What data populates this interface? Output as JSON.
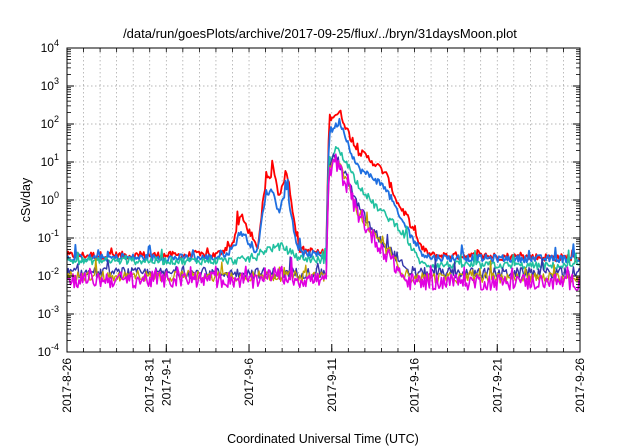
{
  "chart_data": {
    "type": "line",
    "title": "/data/run/goesPlots/archive/2017-09-25/flux/../bryn/31daysMoon.plot",
    "xlabel": "Coordinated Universal Time (UTC)",
    "ylabel": "cSv/day",
    "y_scale": "log",
    "ylim": [
      0.0001,
      10000
    ],
    "y_ticks": [
      {
        "value": 0.0001,
        "base": "10",
        "exp": "-4"
      },
      {
        "value": 0.001,
        "base": "10",
        "exp": "-3"
      },
      {
        "value": 0.01,
        "base": "10",
        "exp": "-2"
      },
      {
        "value": 0.1,
        "base": "10",
        "exp": "-1"
      },
      {
        "value": 1,
        "base": "10",
        "exp": "0"
      },
      {
        "value": 10,
        "base": "10",
        "exp": "1"
      },
      {
        "value": 100,
        "base": "10",
        "exp": "2"
      },
      {
        "value": 1000,
        "base": "10",
        "exp": "3"
      },
      {
        "value": 10000,
        "base": "10",
        "exp": "4"
      }
    ],
    "x_range": [
      "2017-08-26",
      "2017-09-26"
    ],
    "x_ticks": [
      "2017-8-26",
      "2017-8-31",
      "2017-9-1",
      "2017-9-6",
      "2017-9-11",
      "2017-9-16",
      "2017-9-21",
      "2017-9-26"
    ],
    "grid": true,
    "legend": "none",
    "series": [
      {
        "color": "#ff0000",
        "width": 1.8,
        "points": [
          [
            "2017-08-26",
            0.035
          ],
          [
            "2017-09-04",
            0.035
          ],
          [
            "2017-09-05",
            0.07
          ],
          [
            "2017-09-05 12:00",
            0.4
          ],
          [
            "2017-09-06",
            0.15
          ],
          [
            "2017-09-06 12:00",
            0.05
          ],
          [
            "2017-09-07",
            2.5
          ],
          [
            "2017-09-07 12:00",
            7
          ],
          [
            "2017-09-07 18:00",
            1.5
          ],
          [
            "2017-09-08",
            2
          ],
          [
            "2017-09-08 06:00",
            7
          ],
          [
            "2017-09-08 12:00",
            1.5
          ],
          [
            "2017-09-09",
            0.05
          ],
          [
            "2017-09-10 12:00",
            0.04
          ],
          [
            "2017-09-10 16:00",
            0.04
          ],
          [
            "2017-09-10 20:00",
            150
          ],
          [
            "2017-09-11 06:00",
            180
          ],
          [
            "2017-09-11 12:00",
            200
          ],
          [
            "2017-09-12",
            60
          ],
          [
            "2017-09-12 12:00",
            20
          ],
          [
            "2017-09-13",
            15
          ],
          [
            "2017-09-13 12:00",
            10
          ],
          [
            "2017-09-14 06:00",
            5
          ],
          [
            "2017-09-14 18:00",
            1.5
          ],
          [
            "2017-09-15",
            0.8
          ],
          [
            "2017-09-15 12:00",
            0.4
          ],
          [
            "2017-09-16",
            0.12
          ],
          [
            "2017-09-16 12:00",
            0.05
          ],
          [
            "2017-09-17",
            0.035
          ],
          [
            "2017-09-26",
            0.03
          ]
        ]
      },
      {
        "color": "#1f6fe0",
        "width": 1.8,
        "points": [
          [
            "2017-08-26",
            0.03
          ],
          [
            "2017-09-04",
            0.03
          ],
          [
            "2017-09-05",
            0.05
          ],
          [
            "2017-09-05 12:00",
            0.15
          ],
          [
            "2017-09-06",
            0.08
          ],
          [
            "2017-09-06 12:00",
            0.04
          ],
          [
            "2017-09-07",
            1.5
          ],
          [
            "2017-09-07 12:00",
            1.8
          ],
          [
            "2017-09-07 18:00",
            0.5
          ],
          [
            "2017-09-08",
            0.6
          ],
          [
            "2017-09-08 06:00",
            2.5
          ],
          [
            "2017-09-08 12:00",
            0.5
          ],
          [
            "2017-09-09",
            0.04
          ],
          [
            "2017-09-10 12:00",
            0.035
          ],
          [
            "2017-09-10 16:00",
            0.035
          ],
          [
            "2017-09-10 20:00",
            60
          ],
          [
            "2017-09-11 06:00",
            90
          ],
          [
            "2017-09-11 12:00",
            120
          ],
          [
            "2017-09-12",
            30
          ],
          [
            "2017-09-12 12:00",
            8
          ],
          [
            "2017-09-13",
            5
          ],
          [
            "2017-09-13 12:00",
            4
          ],
          [
            "2017-09-14 06:00",
            2
          ],
          [
            "2017-09-14 18:00",
            0.8
          ],
          [
            "2017-09-15",
            0.4
          ],
          [
            "2017-09-15 12:00",
            0.2
          ],
          [
            "2017-09-16",
            0.08
          ],
          [
            "2017-09-16 12:00",
            0.04
          ],
          [
            "2017-09-17",
            0.03
          ],
          [
            "2017-09-26",
            0.028
          ]
        ]
      },
      {
        "color": "#20c0a0",
        "width": 1.6,
        "points": [
          [
            "2017-08-26",
            0.025
          ],
          [
            "2017-09-05",
            0.025
          ],
          [
            "2017-09-06 12:00",
            0.03
          ],
          [
            "2017-09-07",
            0.05
          ],
          [
            "2017-09-08",
            0.06
          ],
          [
            "2017-09-09",
            0.03
          ],
          [
            "2017-09-10 16:00",
            0.025
          ],
          [
            "2017-09-10 20:00",
            10
          ],
          [
            "2017-09-11 06:00",
            25
          ],
          [
            "2017-09-12",
            8
          ],
          [
            "2017-09-12 12:00",
            3
          ],
          [
            "2017-09-13 12:00",
            0.8
          ],
          [
            "2017-09-14 06:00",
            0.4
          ],
          [
            "2017-09-15",
            0.2
          ],
          [
            "2017-09-15 12:00",
            0.1
          ],
          [
            "2017-09-16",
            0.04
          ],
          [
            "2017-09-16 12:00",
            0.02
          ],
          [
            "2017-09-26",
            0.018
          ]
        ]
      },
      {
        "color": "#3333aa",
        "width": 1.4,
        "points": [
          [
            "2017-08-26",
            0.012
          ],
          [
            "2017-09-10 16:00",
            0.012
          ],
          [
            "2017-09-10 20:00",
            8
          ],
          [
            "2017-09-11 06:00",
            15
          ],
          [
            "2017-09-12",
            3
          ],
          [
            "2017-09-12 12:00",
            0.8
          ],
          [
            "2017-09-13 12:00",
            0.15
          ],
          [
            "2017-09-14 06:00",
            0.06
          ],
          [
            "2017-09-15",
            0.03
          ],
          [
            "2017-09-15 12:00",
            0.012
          ],
          [
            "2017-09-26",
            0.012
          ]
        ]
      },
      {
        "color": "#c0a000",
        "width": 1.3,
        "points": [
          [
            "2017-08-26",
            0.01
          ],
          [
            "2017-09-10 16:00",
            0.01
          ],
          [
            "2017-09-10 20:00",
            7
          ],
          [
            "2017-09-11 06:00",
            12
          ],
          [
            "2017-09-12",
            2.5
          ],
          [
            "2017-09-12 12:00",
            0.6
          ],
          [
            "2017-09-13 12:00",
            0.12
          ],
          [
            "2017-09-14 06:00",
            0.05
          ],
          [
            "2017-09-15",
            0.02
          ],
          [
            "2017-09-15 12:00",
            0.009
          ],
          [
            "2017-09-26",
            0.009
          ]
        ]
      },
      {
        "color": "#e000e0",
        "width": 1.6,
        "points": [
          [
            "2017-08-26",
            0.008
          ],
          [
            "2017-09-06",
            0.008
          ],
          [
            "2017-09-06 12:00",
            0.006
          ],
          [
            "2017-09-07",
            0.012
          ],
          [
            "2017-09-09",
            0.008
          ],
          [
            "2017-09-10 16:00",
            0.008
          ],
          [
            "2017-09-10 20:00",
            6
          ],
          [
            "2017-09-11 06:00",
            10
          ],
          [
            "2017-09-12",
            2
          ],
          [
            "2017-09-12 12:00",
            0.5
          ],
          [
            "2017-09-13 12:00",
            0.1
          ],
          [
            "2017-09-14 06:00",
            0.04
          ],
          [
            "2017-09-15",
            0.015
          ],
          [
            "2017-09-15 12:00",
            0.007
          ],
          [
            "2017-09-26",
            0.007
          ]
        ]
      }
    ]
  }
}
